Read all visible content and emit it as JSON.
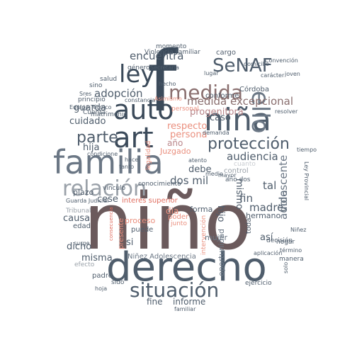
{
  "palette": {
    "slate_dark": "#3b4a5a",
    "slate": "#4f5d6c",
    "slate_mid": "#6b7785",
    "grey": "#9aa1a9",
    "mauve_dark": "#6b5a5c",
    "mauve": "#8a6f6f",
    "rose": "#b9868a",
    "coral": "#e06d5f",
    "salmon": "#ea8f7e",
    "pale": "#c9ccd1"
  },
  "words": [
    {
      "text": "niño",
      "color": "mauve_dark"
    },
    {
      "text": "f",
      "color": "slate_dark"
    },
    {
      "text": "derecho",
      "color": "slate"
    },
    {
      "text": "familia",
      "color": "slate_mid"
    },
    {
      "text": "niña",
      "color": "slate"
    },
    {
      "text": "art",
      "color": "slate_dark"
    },
    {
      "text": "auto",
      "color": "slate_dark"
    },
    {
      "text": "ley",
      "color": "slate_dark"
    },
    {
      "text": "relación",
      "color": "grey"
    },
    {
      "text": "situación",
      "color": "slate"
    },
    {
      "text": "medida",
      "color": "mauve"
    },
    {
      "text": "protección",
      "color": "slate"
    },
    {
      "text": "ello",
      "color": "slate_mid"
    },
    {
      "text": "SeNAF",
      "color": "slate"
    },
    {
      "text": "parte",
      "color": "slate"
    },
    {
      "text": "medida excepcional",
      "color": "mauve"
    },
    {
      "text": "adopción",
      "color": "slate"
    },
    {
      "text": "encuentra",
      "color": "slate"
    },
    {
      "text": "progenitora",
      "color": "rose"
    },
    {
      "text": "guarda",
      "color": "slate"
    },
    {
      "text": "respecto",
      "color": "salmon"
    },
    {
      "text": "persona",
      "color": "salmon"
    },
    {
      "text": "audiencia",
      "color": "slate"
    },
    {
      "text": "caso",
      "color": "slate"
    },
    {
      "text": "cuidado",
      "color": "slate"
    },
    {
      "text": "dos mil",
      "color": "slate"
    },
    {
      "text": "debe",
      "color": "slate"
    },
    {
      "text": "año",
      "color": "rose"
    },
    {
      "text": "Juzgado",
      "color": "salmon"
    },
    {
      "text": "hija",
      "color": "slate"
    },
    {
      "text": "interés superior",
      "color": "coral"
    },
    {
      "text": "madre",
      "color": "slate"
    },
    {
      "text": "fin",
      "color": "slate"
    },
    {
      "text": "tal",
      "color": "slate"
    },
    {
      "text": "mismo",
      "color": "slate"
    },
    {
      "text": "vida",
      "color": "slate"
    },
    {
      "text": "adolescente",
      "color": "slate_mid"
    },
    {
      "text": "causa",
      "color": "slate"
    },
    {
      "text": "plazo",
      "color": "slate"
    },
    {
      "text": "cese",
      "color": "slate"
    },
    {
      "text": "hijo",
      "color": "slate"
    },
    {
      "text": "dicho",
      "color": "slate"
    },
    {
      "text": "misma",
      "color": "slate"
    },
    {
      "text": "fine",
      "color": "slate"
    },
    {
      "text": "informe",
      "color": "slate"
    },
    {
      "text": "forma",
      "color": "slate"
    },
    {
      "text": "hermano",
      "color": "slate"
    },
    {
      "text": "Niñez Adolescencia",
      "color": "slate_mid"
    },
    {
      "text": "proceso",
      "color": "salmon"
    },
    {
      "text": "presente",
      "color": "salmon"
    },
    {
      "text": "puede",
      "color": "slate"
    },
    {
      "text": "poder",
      "color": "salmon"
    },
    {
      "text": "oportunidad",
      "color": "slate_mid"
    },
    {
      "text": "mujer",
      "color": "slate_mid"
    },
    {
      "text": "dia",
      "color": "salmon"
    },
    {
      "text": "si",
      "color": "slate"
    },
    {
      "text": "así",
      "color": "slate"
    },
    {
      "text": "Córdoba",
      "color": "slate"
    },
    {
      "text": "conforme",
      "color": "slate"
    },
    {
      "text": "Equipo Técnico",
      "color": "slate"
    },
    {
      "text": "principio",
      "color": "slate"
    },
    {
      "text": "matrimonio",
      "color": "slate"
    },
    {
      "text": "cargo",
      "color": "slate"
    },
    {
      "text": "momento",
      "color": "slate"
    },
    {
      "text": "Violencia Familiar",
      "color": "slate"
    },
    {
      "text": "salud",
      "color": "slate"
    },
    {
      "text": "género",
      "color": "slate"
    },
    {
      "text": "Secretaría",
      "color": "slate"
    },
    {
      "text": "sino",
      "color": "slate"
    },
    {
      "text": "Cuenta",
      "color": "slate"
    },
    {
      "text": "Tribunal",
      "color": "grey"
    },
    {
      "text": "edad",
      "color": "slate"
    },
    {
      "text": "padre",
      "color": "slate"
    },
    {
      "text": "Guarda Judicial",
      "color": "slate"
    },
    {
      "text": "conocimiento",
      "color": "slate"
    },
    {
      "text": "vínculo",
      "color": "slate"
    },
    {
      "text": "control",
      "color": "grey"
    },
    {
      "text": "cuanto",
      "color": "pale"
    },
    {
      "text": "hogar",
      "color": "slate"
    },
    {
      "text": "manera",
      "color": "slate"
    },
    {
      "text": "toda",
      "color": "slate"
    },
    {
      "text": "decisión",
      "color": "slate"
    },
    {
      "text": "aplicación",
      "color": "slate"
    },
    {
      "text": "término",
      "color": "slate"
    },
    {
      "text": "Niñez",
      "color": "slate"
    },
    {
      "text": "joven",
      "color": "slate"
    },
    {
      "text": "carácter",
      "color": "slate"
    },
    {
      "text": "Convención",
      "color": "slate"
    },
    {
      "text": "domicilio",
      "color": "slate"
    },
    {
      "text": "resolver",
      "color": "slate"
    },
    {
      "text": "personal",
      "color": "salmon"
    },
    {
      "text": "legalidad",
      "color": "salmon"
    },
    {
      "text": "Asimismo",
      "color": "salmon"
    },
    {
      "text": "demanda",
      "color": "slate"
    },
    {
      "text": "intervención",
      "color": "salmon"
    },
    {
      "text": "junto",
      "color": "salmon"
    },
    {
      "text": "ejercicio",
      "color": "slate"
    },
    {
      "text": "efecto",
      "color": "grey"
    },
    {
      "text": "surge",
      "color": "slate"
    },
    {
      "text": "sido",
      "color": "slate"
    },
    {
      "text": "constancia",
      "color": "slate"
    },
    {
      "text": "lugar",
      "color": "slate"
    },
    {
      "text": "hecho",
      "color": "slate"
    },
    {
      "text": "familiar",
      "color": "slate"
    },
    {
      "text": "tiempo",
      "color": "slate"
    },
    {
      "text": "Ley Provincial",
      "color": "slate"
    },
    {
      "text": "atento",
      "color": "slate"
    },
    {
      "text": "medio",
      "color": "slate"
    },
    {
      "text": "mayor",
      "color": "slate"
    },
    {
      "text": "año dos",
      "color": "slate"
    },
    {
      "text": "Sres",
      "color": "slate"
    },
    {
      "text": "condicione",
      "color": "slate"
    },
    {
      "text": "hace",
      "color": "slate"
    },
    {
      "text": "tanto",
      "color": "slate"
    },
    {
      "text": "consecuencia",
      "color": "coral"
    },
    {
      "text": "solo",
      "color": "slate"
    },
    {
      "text": "hoja",
      "color": "slate"
    }
  ]
}
